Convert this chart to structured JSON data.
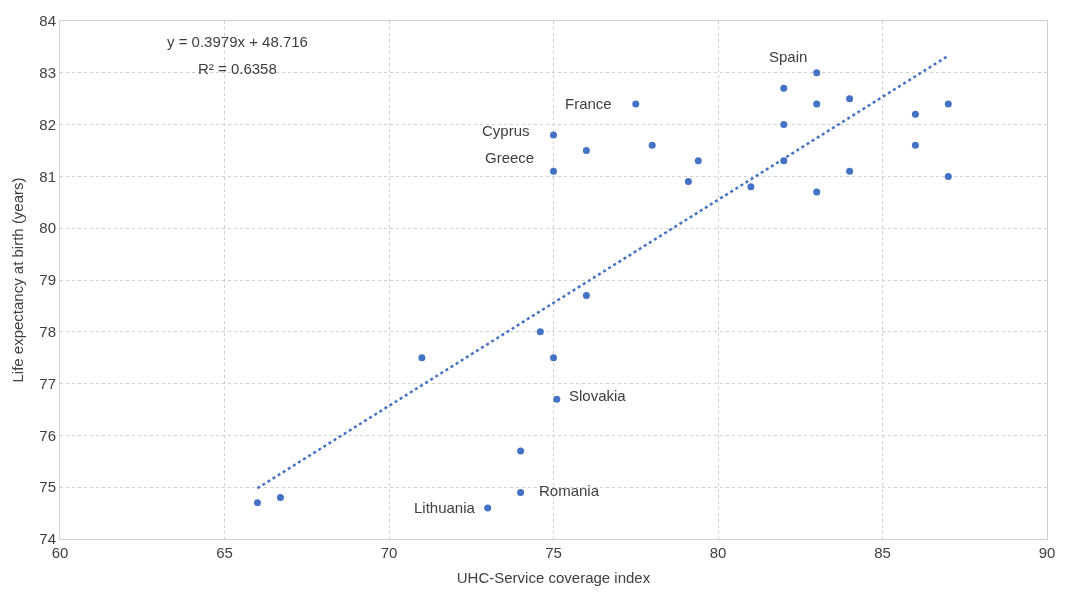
{
  "chart_data": {
    "type": "scatter",
    "xlabel": "UHC-Service coverage index",
    "ylabel": "Life expectancy at birth (years)",
    "xlim": [
      60,
      90
    ],
    "xticks": [
      60,
      65,
      70,
      75,
      80,
      85,
      90
    ],
    "ylim": [
      74,
      84
    ],
    "yticks": [
      74,
      75,
      76,
      77,
      78,
      79,
      80,
      81,
      82,
      83,
      84
    ],
    "grid": true,
    "marker": "circle",
    "series": [
      {
        "color": "#4472c4",
        "x": [
          66,
          66.7,
          71,
          73,
          74,
          74,
          74.6,
          75,
          75.1,
          75,
          75,
          76,
          76,
          77.5,
          78,
          79.1,
          79.4,
          81,
          82,
          82,
          82,
          83,
          83,
          83,
          84,
          84,
          86,
          86,
          87,
          87
        ],
        "values": [
          74.7,
          74.8,
          77.5,
          74.6,
          74.9,
          75.7,
          78.0,
          77.5,
          76.7,
          81.1,
          81.8,
          81.5,
          78.7,
          82.4,
          81.6,
          80.9,
          81.3,
          80.8,
          81.3,
          82.0,
          82.7,
          83.0,
          82.4,
          80.7,
          82.5,
          81.1,
          82.2,
          81.6,
          82.4,
          81.0
        ]
      },
      {
        "type": "line",
        "color": "#4472c4",
        "line_style": "dotted",
        "marker": "none",
        "x": [
          66,
          87
        ],
        "values": [
          74.98,
          83.33
        ]
      }
    ],
    "annotations": [
      {
        "text": "y = 0.3979x + 48.716"
      },
      {
        "text": "R² = 0.6358"
      },
      {
        "text": "Spain",
        "x": 83,
        "y": 83.0
      },
      {
        "text": "France",
        "x": 77.5,
        "y": 82.4
      },
      {
        "text": "Cyprus",
        "x": 75,
        "y": 81.8
      },
      {
        "text": "Greece",
        "x": 75,
        "y": 81.1
      },
      {
        "text": "Slovakia",
        "x": 75.1,
        "y": 76.7
      },
      {
        "text": "Romania",
        "x": 74,
        "y": 74.9
      },
      {
        "text": "Lithuania",
        "x": 73,
        "y": 74.6
      }
    ]
  }
}
